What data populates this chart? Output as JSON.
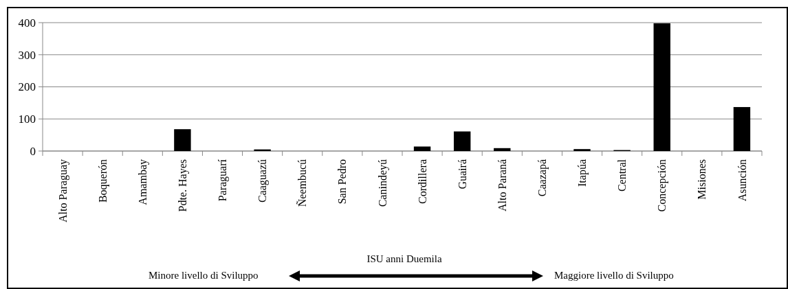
{
  "chart_data": {
    "type": "bar",
    "xlabel": "ISU anni Duemila",
    "annotations": [
      "Minore livello di Sviluppo",
      "Maggiore livello di Sviluppo"
    ],
    "categories": [
      "Alto Paraguay",
      "Boquerón",
      "Amambay",
      "Pdte. Hayes",
      "Paraguarí",
      "Caaguazú",
      "Ñeembucú",
      "San Pedro",
      "Canindeyú",
      "Cordillera",
      "Guairá",
      "Alto Paraná",
      "Caazapá",
      "Itapúa",
      "Central",
      "Concepción",
      "Misiones",
      "Asunción"
    ],
    "values": [
      0,
      0,
      0,
      68,
      0,
      5,
      0,
      0,
      0,
      14,
      61,
      9,
      0,
      6,
      3,
      398,
      0,
      137
    ],
    "color": "#000000",
    "ylim": [
      0,
      400
    ],
    "yticks": [
      0,
      100,
      200,
      300,
      400
    ],
    "grid": "y"
  }
}
